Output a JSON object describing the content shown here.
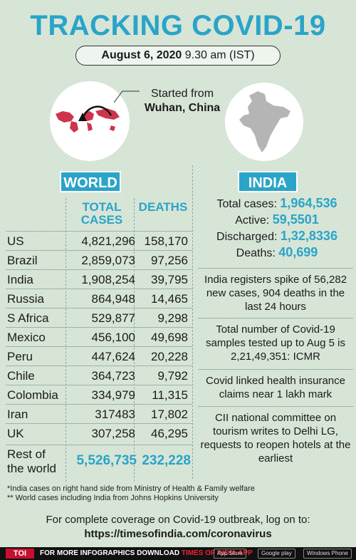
{
  "header": {
    "title": "TRACKING COVID-19",
    "date_bold": "August 6, 2020",
    "time": "9.30 am (IST)"
  },
  "origin": {
    "line1": "Started from",
    "line2": "Wuhan, China"
  },
  "world": {
    "tab_label": "WORLD",
    "col_cases_label_1": "TOTAL",
    "col_cases_label_2": "CASES",
    "col_deaths_label": "DEATHS",
    "rows": [
      {
        "country": "US",
        "cases": "4,821,296",
        "deaths": "158,170"
      },
      {
        "country": "Brazil",
        "cases": "2,859,073",
        "deaths": "97,256"
      },
      {
        "country": "India",
        "cases": "1,908,254",
        "deaths": "39,795"
      },
      {
        "country": "Russia",
        "cases": "864,948",
        "deaths": "14,465"
      },
      {
        "country": "S Africa",
        "cases": "529,877",
        "deaths": "9,298"
      },
      {
        "country": "Mexico",
        "cases": "456,100",
        "deaths": "49,698"
      },
      {
        "country": "Peru",
        "cases": "447,624",
        "deaths": "20,228"
      },
      {
        "country": "Chile",
        "cases": "364,723",
        "deaths": "9,792"
      },
      {
        "country": "Colombia",
        "cases": "334,979",
        "deaths": "11,315"
      },
      {
        "country": "Iran",
        "cases": "317483",
        "deaths": "17,802"
      },
      {
        "country": "UK",
        "cases": "307,258",
        "deaths": "46,295"
      }
    ],
    "rest_label_1": "Rest of",
    "rest_label_2": "the world",
    "rest_cases": "5,526,735",
    "rest_deaths": "232,228"
  },
  "india": {
    "tab_label": "INDIA",
    "total_label": "Total cases:",
    "total_value": "1,964,536",
    "active_label": "Active:",
    "active_value": "59,5501",
    "discharged_label": "Discharged:",
    "discharged_value": "1,32,8336",
    "deaths_label": "Deaths:",
    "deaths_value": "40,699",
    "news": [
      "India registers spike of 56,282 new cases, 904 deaths in the last 24 hours",
      "Total number of Covid-19 samples tested up to Aug 5 is 2,21,49,351: ICMR",
      "Covid linked health insurance claims near 1 lakh mark",
      "CII national committee on tourism writes to Delhi LG, requests to reopen hotels at the earliest"
    ]
  },
  "footnotes": {
    "note1": "*India cases on right hand side from Ministry of Health & Family welfare",
    "note2": "** World cases including India from Johns Hopkins University"
  },
  "coverage": {
    "line1": "For complete coverage on Covid-19 outbreak, log on to:",
    "url": "https://timesofindia.com/coronavirus"
  },
  "footer": {
    "logo": "TOI",
    "text_a": "FOR MORE  INFOGRAPHICS DOWNLOAD",
    "text_b": "TIMES OF INDIA  APP",
    "store1": "App Store",
    "store2": "Google play",
    "store3": "Windows Phone"
  },
  "colors": {
    "accent": "#2aa4c8",
    "background": "#d7e6d7",
    "map_red": "#c8102e"
  }
}
